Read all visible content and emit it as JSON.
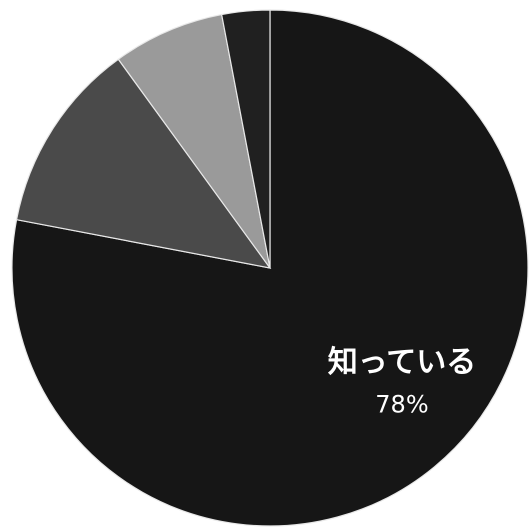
{
  "chart_data": {
    "type": "pie",
    "categories": [
      "知っている",
      null,
      null,
      null
    ],
    "values": [
      78,
      12,
      7,
      3
    ],
    "value_labels": [
      "78%",
      null,
      null,
      null
    ],
    "colors": [
      "#161616",
      "#4a4a4a",
      "#9a9a9a",
      "#202020"
    ],
    "start_angle": 0,
    "direction": "clockwise"
  }
}
